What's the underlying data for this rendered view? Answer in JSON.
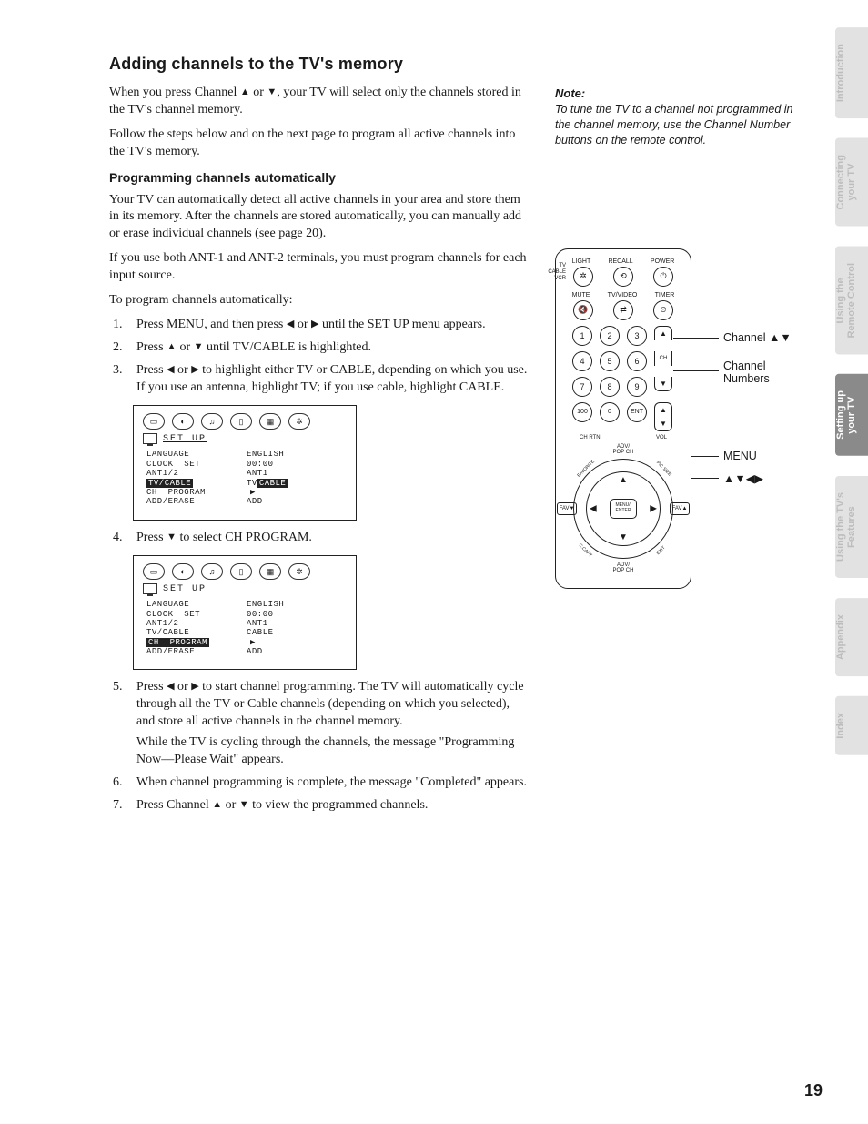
{
  "headings": {
    "h1": "Adding channels to the TV's memory",
    "h2": "Programming channels automatically"
  },
  "intro": {
    "p1a": "When you press Channel ",
    "p1b": " or ",
    "p1c": ", your TV will select only the channels stored in the TV's channel memory.",
    "p2": "Follow the steps below and on the next page to program all active channels into the TV's memory."
  },
  "body": {
    "p3": "Your TV can automatically detect all active channels in your area and store them in its memory. After the channels are stored automatically, you can manually add or erase individual channels (see page 20).",
    "p4": "If you use both ANT-1 and ANT-2 terminals, you must program channels for each input source.",
    "p5": "To program channels automatically:"
  },
  "steps": {
    "s1a": "Press MENU, and then press ",
    "s1b": " or ",
    "s1c": " until the SET UP menu appears.",
    "s2a": "Press ",
    "s2b": " or ",
    "s2c": " until TV/CABLE is highlighted.",
    "s3a": "Press ",
    "s3b": " or ",
    "s3c": " to highlight either TV or CABLE, depending on which you use. If you use an antenna, highlight TV; if you use cable, highlight CABLE.",
    "s4a": "Press ",
    "s4b": " to select CH PROGRAM.",
    "s5a": "Press ",
    "s5b": " or ",
    "s5c": " to start channel programming. The TV will automatically cycle through all the TV or Cable channels (depending on which you selected), and store all active channels in the channel memory.",
    "s5d": "While the TV is cycling through the channels, the message \"Programming Now—Please Wait\" appears.",
    "s6": "When channel programming is complete, the message \"Completed\" appears.",
    "s7a": "Press Channel ",
    "s7b": " or ",
    "s7c": " to view the programmed channels."
  },
  "glyphs": {
    "up": "▲",
    "down": "▼",
    "left": "◀",
    "right": "▶"
  },
  "note": {
    "head": "Note:",
    "body": "To tune the TV to a channel not programmed in the channel memory, use the Channel Number buttons on the remote control."
  },
  "osd": {
    "title": "SET  UP",
    "rows": [
      {
        "k": "LANGUAGE",
        "v": "ENGLISH"
      },
      {
        "k": "CLOCK  SET",
        "v": "00:00"
      },
      {
        "k": "ANT1/2",
        "v": "ANT1"
      }
    ],
    "hl1": {
      "k": "TV/CABLE",
      "kpre": "TV",
      "v": "TV",
      "vpost": "CABLE"
    },
    "after1": [
      {
        "k": "CH  PROGRAM",
        "v": "",
        "arrow": true
      },
      {
        "k": "ADD/ERASE",
        "v": "ADD"
      }
    ],
    "rows2": [
      {
        "k": "LANGUAGE",
        "v": "ENGLISH"
      },
      {
        "k": "CLOCK  SET",
        "v": "00:00"
      },
      {
        "k": "ANT1/2",
        "v": "ANT1"
      },
      {
        "k": "TV/CABLE",
        "v": "CABLE"
      }
    ],
    "hl2": {
      "k": "CH  PROGRAM",
      "v": "",
      "arrow": true
    },
    "after2": [
      {
        "k": "ADD/ERASE",
        "v": "ADD"
      }
    ]
  },
  "remote": {
    "toplabels": [
      "LIGHT",
      "RECALL",
      "POWER"
    ],
    "row2labels": [
      "MUTE",
      "TV/VIDEO",
      "TIMER"
    ],
    "sidelabels": [
      "TV",
      "CABLE",
      "VCR"
    ],
    "row1btn": [
      "✲",
      "⟲",
      "⏻"
    ],
    "row2btn": [
      "🔇",
      "⇄",
      "⏲"
    ],
    "nums": [
      "1",
      "2",
      "3",
      "4",
      "5",
      "6",
      "7",
      "8",
      "9"
    ],
    "lastrow": [
      "100",
      "0",
      "ENT"
    ],
    "ch": "CH",
    "vol": "VOL",
    "chrtn": "CH RTN",
    "adv": "ADV/\nPOP CH",
    "menu": "MENU/\nENTER",
    "favL": "FAV▼",
    "favR": "FAV▲",
    "diag": [
      "FAVORITE",
      "PIC SIZE",
      "C.CAPT",
      "EXIT"
    ]
  },
  "callouts": {
    "chUpDown": "Channel ▲▼",
    "chNums": "Channel\nNumbers",
    "menu": "MENU",
    "arrows": "▲▼◀▶"
  },
  "tabs": [
    {
      "label": "Introduction",
      "active": false
    },
    {
      "label": "Connecting\nyour TV",
      "active": false
    },
    {
      "label": "Using the\nRemote Control",
      "active": false
    },
    {
      "label": "Setting up\nyour TV",
      "active": true
    },
    {
      "label": "Using the TV's\nFeatures",
      "active": false
    },
    {
      "label": "Appendix",
      "active": false
    },
    {
      "label": "Index",
      "active": false
    }
  ],
  "pageNumber": "19"
}
